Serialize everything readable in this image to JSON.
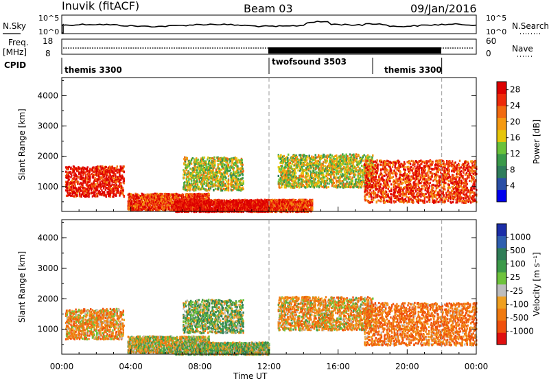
{
  "header": {
    "station": "Inuvik (fitACF)",
    "beam": "Beam 03",
    "date": "09/Jan/2016"
  },
  "top_panels": {
    "nsky_label": "N.Sky",
    "nsearch_label": "N.Search",
    "noise_ticks": [
      "10^5",
      "10^0"
    ],
    "freq_label": "Freq.",
    "freq_unit": "[MHz]",
    "freq_ticks": [
      "18",
      "8"
    ],
    "nave_label": "Nave",
    "nave_ticks": [
      "60",
      "0"
    ],
    "cpid_label": "CPID",
    "cpid_segments": [
      {
        "name": "themis 3300",
        "start_hour": 0,
        "end_hour": 12
      },
      {
        "name": "twofsound 3503",
        "start_hour": 12,
        "end_hour": 18
      },
      {
        "name": "themis 3300",
        "start_hour": 18,
        "end_hour": 22
      }
    ]
  },
  "colors": {
    "power": [
      "#0000ee",
      "#2a4fa6",
      "#2e7d5b",
      "#3a9a4a",
      "#6ac23a",
      "#e6c60a",
      "#f59a12",
      "#f26a10",
      "#ee2a0a",
      "#dd0000"
    ],
    "velocity": [
      "#1c2ea8",
      "#2f5fb0",
      "#2f7d57",
      "#3c9a49",
      "#6ec33c",
      "#bdbdbd",
      "#f0a020",
      "#f07a10",
      "#f0500c",
      "#e01010"
    ]
  },
  "chart_data": [
    {
      "type": "heatmap",
      "name": "power",
      "ylabel": "Slant Range [km]",
      "xlabel": "Time UT",
      "x_ticks": [
        "00:00",
        "04:00",
        "08:00",
        "12:00",
        "16:00",
        "20:00",
        "00:00"
      ],
      "y_ticks": [
        1000,
        2000,
        3000,
        4000
      ],
      "xlim_hours": [
        0,
        24
      ],
      "ylim_km": [
        180,
        4600
      ],
      "colorbar": {
        "label": "Power [dB]",
        "ticks": [
          4,
          8,
          12,
          16,
          20,
          24,
          28
        ],
        "range": [
          0,
          30
        ]
      },
      "scatter_regions": [
        {
          "t0": 0.2,
          "t1": 3.6,
          "r0": 700,
          "r1": 1700,
          "val": 26
        },
        {
          "t0": 3.8,
          "t1": 8.5,
          "r0": 250,
          "r1": 800,
          "val": 24
        },
        {
          "t0": 6.5,
          "t1": 12.0,
          "r0": 200,
          "r1": 600,
          "val": 28
        },
        {
          "t0": 7.0,
          "t1": 10.5,
          "r0": 900,
          "r1": 2000,
          "val": 14
        },
        {
          "t0": 12.0,
          "t1": 14.5,
          "r0": 200,
          "r1": 600,
          "val": 24
        },
        {
          "t0": 12.5,
          "t1": 18.0,
          "r0": 1000,
          "r1": 2100,
          "val": 14
        },
        {
          "t0": 17.5,
          "t1": 24.0,
          "r0": 500,
          "r1": 1900,
          "val": 24
        }
      ]
    },
    {
      "type": "heatmap",
      "name": "velocity",
      "ylabel": "Slant Range [km]",
      "xlabel": "Time UT",
      "x_ticks": [
        "00:00",
        "04:00",
        "08:00",
        "12:00",
        "16:00",
        "20:00",
        "00:00"
      ],
      "y_ticks": [
        1000,
        2000,
        3000,
        4000
      ],
      "xlim_hours": [
        0,
        24
      ],
      "ylim_km": [
        180,
        4600
      ],
      "colorbar": {
        "label": "Velocity [m s⁻¹]",
        "ticks": [
          "1000",
          "500",
          "100",
          "25",
          "-25",
          "-100",
          "-500",
          "-1000"
        ]
      },
      "scatter_regions": [
        {
          "t0": 0.2,
          "t1": 3.6,
          "r0": 700,
          "r1": 1700,
          "val": -150
        },
        {
          "t0": 3.8,
          "t1": 8.5,
          "r0": 250,
          "r1": 800,
          "val": 0
        },
        {
          "t0": 6.5,
          "t1": 12.0,
          "r0": 200,
          "r1": 600,
          "val": 80
        },
        {
          "t0": 7.0,
          "t1": 10.5,
          "r0": 900,
          "r1": 2000,
          "val": 120
        },
        {
          "t0": 12.5,
          "t1": 18.0,
          "r0": 1000,
          "r1": 2100,
          "val": -120
        },
        {
          "t0": 17.5,
          "t1": 24.0,
          "r0": 500,
          "r1": 1900,
          "val": -250
        }
      ]
    }
  ],
  "xlabel": "Time UT"
}
